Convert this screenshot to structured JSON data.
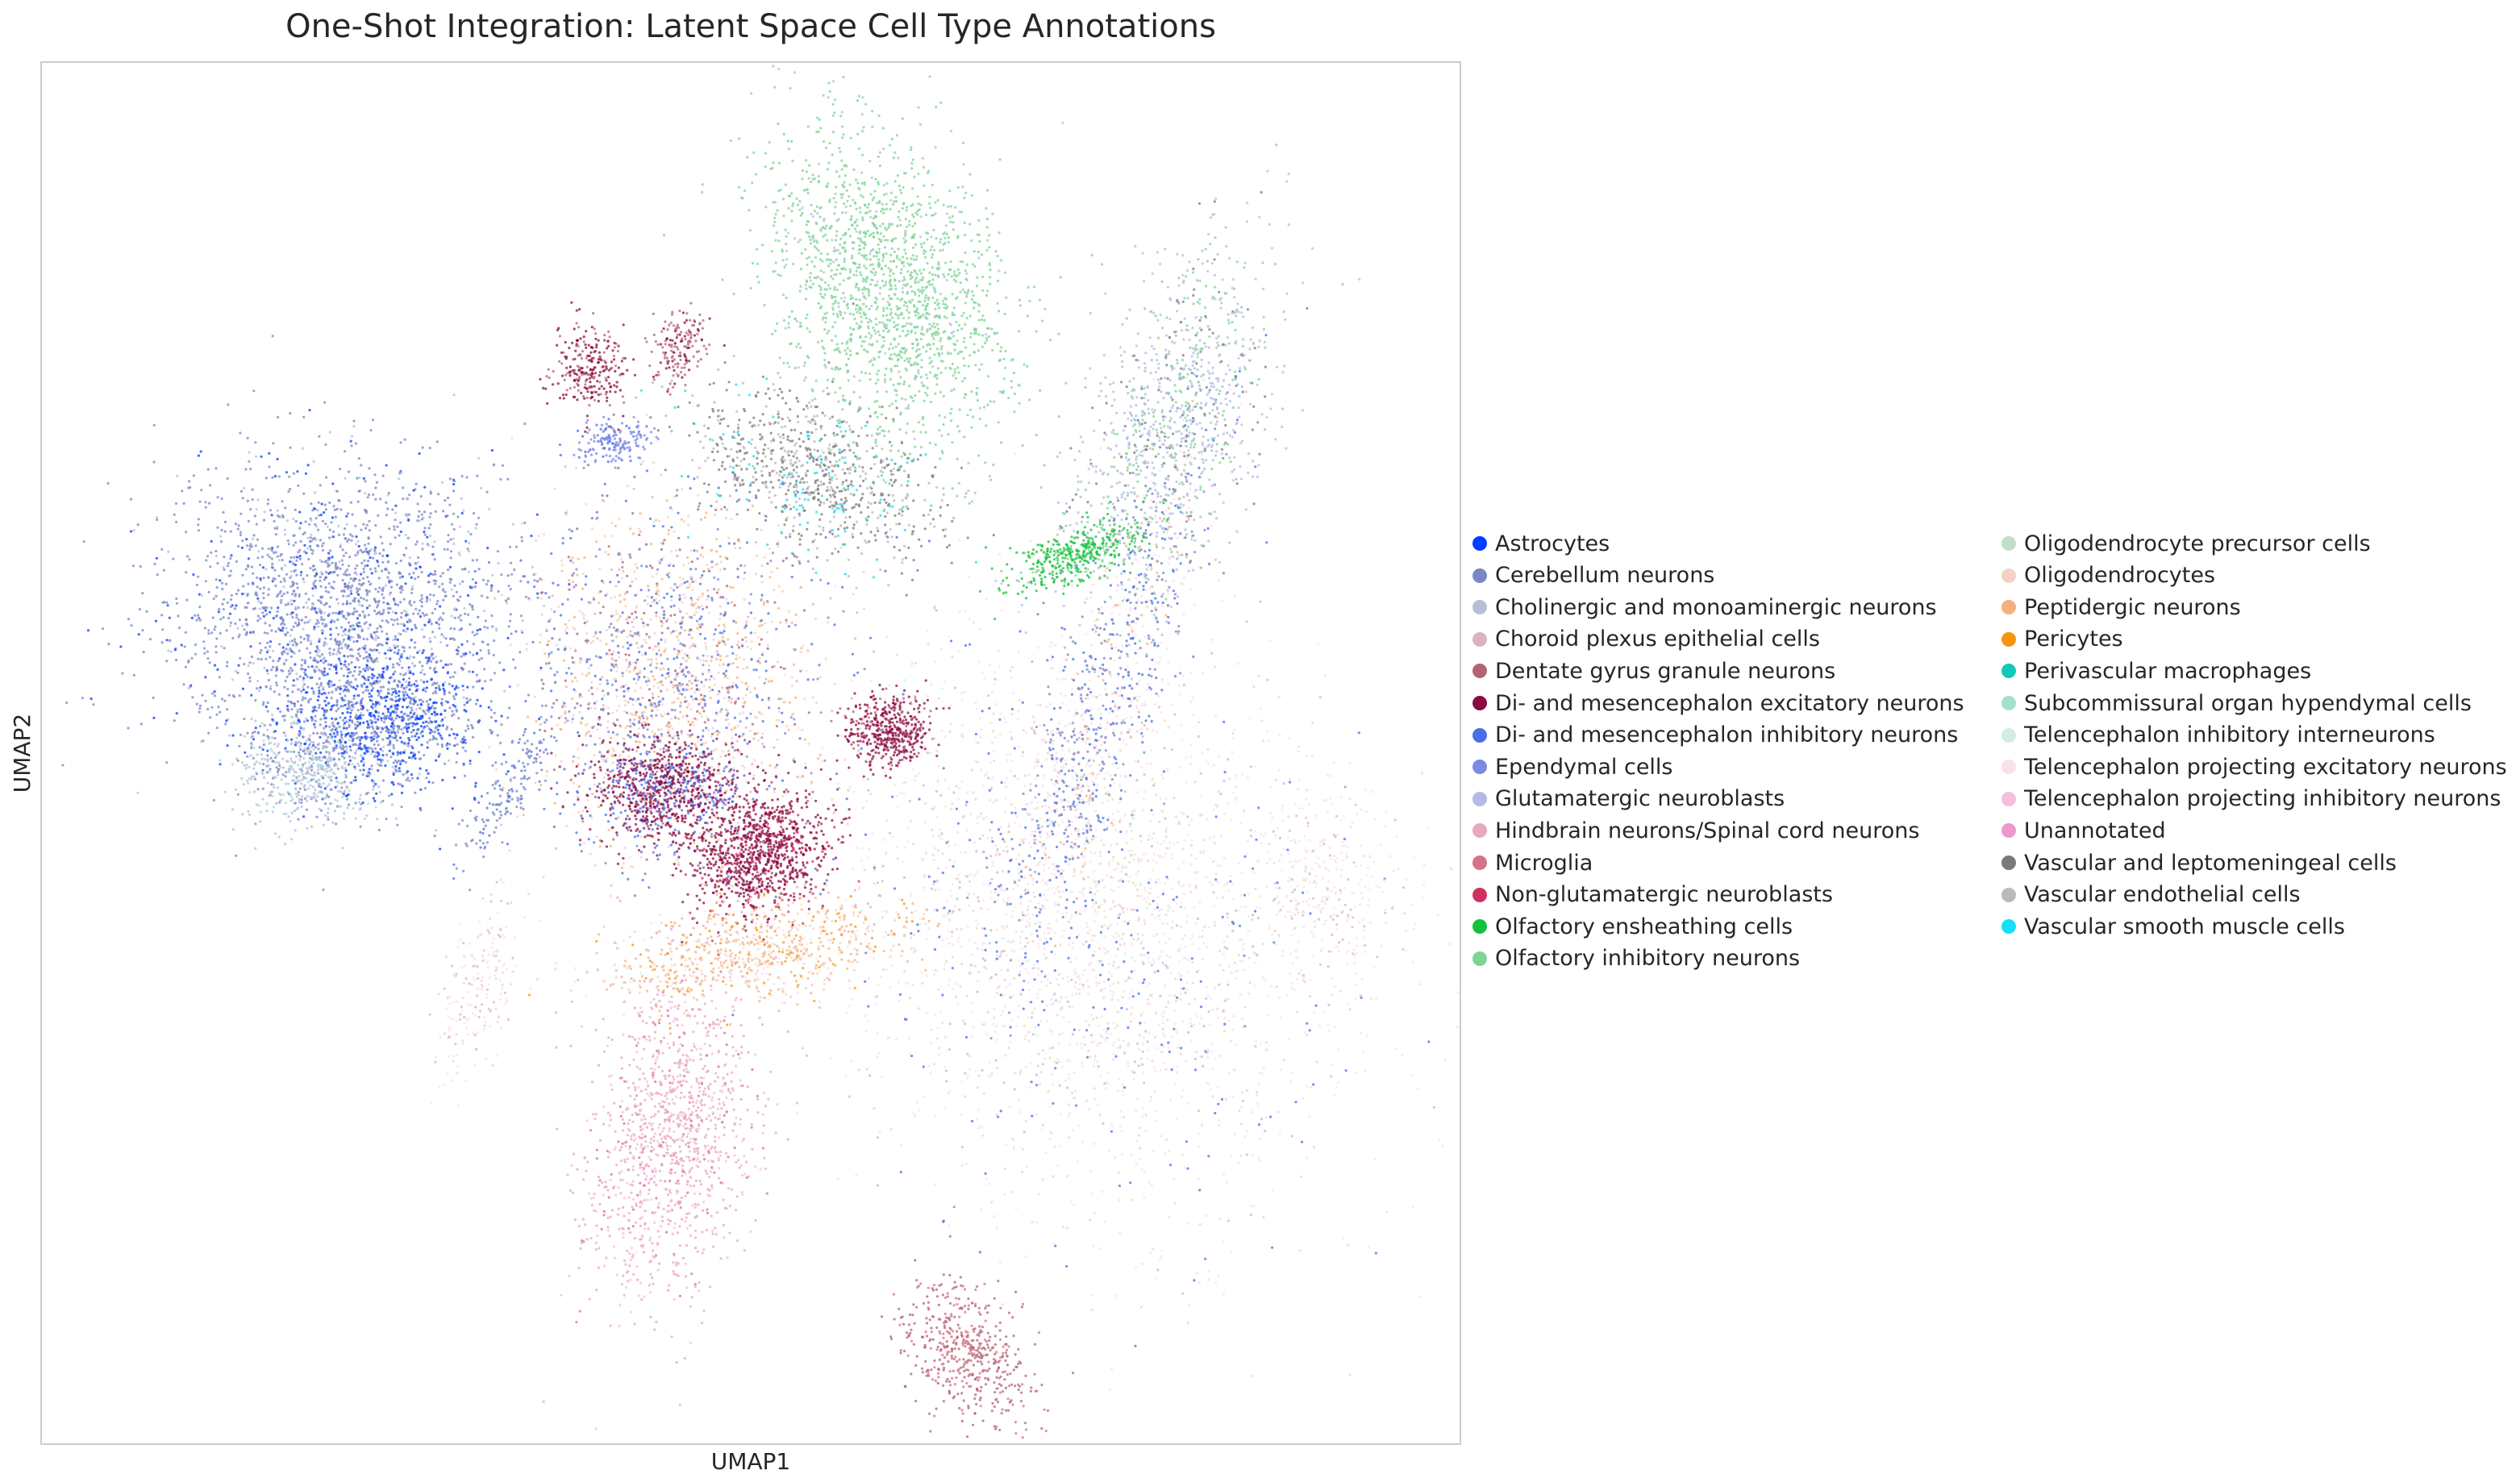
{
  "chart_data": {
    "type": "scatter",
    "title": "One-Shot Integration: Latent Space Cell Type Annotations",
    "xlabel": "UMAP1",
    "ylabel": "UMAP2",
    "grid": false,
    "axis_ticks": false,
    "legend_position": "right, two columns",
    "categories": [
      {
        "name": "Astrocytes",
        "color": "#023eff"
      },
      {
        "name": "Cerebellum neurons",
        "color": "#7a86c6"
      },
      {
        "name": "Cholinergic and monoaminergic neurons",
        "color": "#b8bed8"
      },
      {
        "name": "Choroid plexus epithelial cells",
        "color": "#dcb3c1"
      },
      {
        "name": "Dentate gyrus granule neurons",
        "color": "#b36375"
      },
      {
        "name": "Di- and mesencephalon excitatory neurons",
        "color": "#8b0a3f"
      },
      {
        "name": "Di- and mesencephalon inhibitory neurons",
        "color": "#4a6ee8"
      },
      {
        "name": "Ependymal cells",
        "color": "#7b89e0"
      },
      {
        "name": "Glutamatergic neuroblasts",
        "color": "#b4b9e6"
      },
      {
        "name": "Hindbrain neurons/Spinal cord neurons",
        "color": "#e7a9bd"
      },
      {
        "name": "Microglia",
        "color": "#d57287"
      },
      {
        "name": "Non-glutamatergic neuroblasts",
        "color": "#cf3261"
      },
      {
        "name": "Olfactory ensheathing cells",
        "color": "#14c13c"
      },
      {
        "name": "Olfactory inhibitory neurons",
        "color": "#7ed494"
      },
      {
        "name": "Oligodendrocyte precursor cells",
        "color": "#c1e0c7"
      },
      {
        "name": "Oligodendrocytes",
        "color": "#f0d3c5"
      },
      {
        "name": "Peptidergic neurons",
        "color": "#f5b17d"
      },
      {
        "name": "Pericytes",
        "color": "#f7940f"
      },
      {
        "name": "Perivascular macrophages",
        "color": "#12c9b5"
      },
      {
        "name": "Subcommissural organ hypendymal cells",
        "color": "#a3dfce"
      },
      {
        "name": "Telencephalon inhibitory interneurons",
        "color": "#d3ece4"
      },
      {
        "name": "Telencephalon projecting excitatory neurons",
        "color": "#f8e1e9"
      },
      {
        "name": "Telencephalon projecting inhibitory neurons",
        "color": "#f5bedd"
      },
      {
        "name": "Unannotated",
        "color": "#ee97cc"
      },
      {
        "name": "Vascular and leptomeningeal cells",
        "color": "#7a7a7a"
      },
      {
        "name": "Vascular endothelial cells",
        "color": "#bababa"
      },
      {
        "name": "Vascular smooth muscle cells",
        "color": "#15e0f7"
      }
    ]
  }
}
